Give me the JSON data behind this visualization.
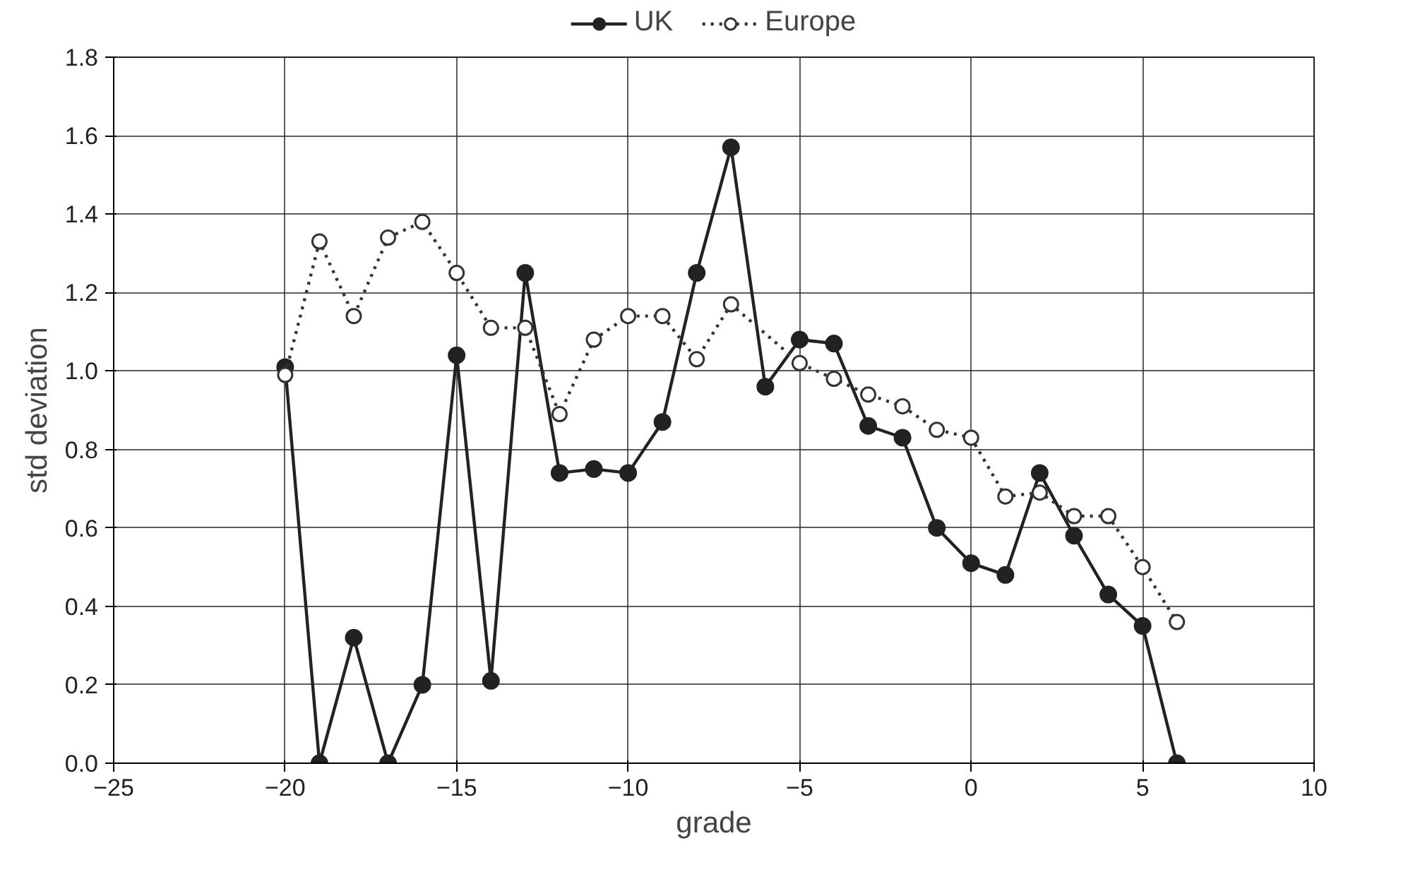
{
  "chart_data": {
    "type": "line",
    "xlabel": "grade",
    "ylabel": "std deviation",
    "x": [
      -20,
      -19,
      -18,
      -17,
      -16,
      -15,
      -14,
      -13,
      -12,
      -11,
      -10,
      -9,
      -8,
      -7,
      -6,
      -5,
      -4,
      -3,
      -2,
      -1,
      0,
      1,
      2,
      3,
      4,
      5,
      6
    ],
    "series": [
      {
        "name": "UK",
        "color": "#222222",
        "marker": "circle",
        "line_style": "solid",
        "values": [
          1.01,
          0,
          0.32,
          0,
          0.2,
          1.04,
          0.21,
          1.25,
          0.74,
          0.75,
          0.74,
          0.87,
          1.25,
          1.57,
          0.96,
          1.08,
          1.07,
          0.86,
          0.83,
          0.6,
          0.51,
          0.48,
          0.74,
          0.58,
          0.43,
          0.35,
          0
        ]
      },
      {
        "name": "Europe",
        "color": "#333333",
        "marker": "circle_open",
        "line_style": "dotted",
        "values": [
          0.99,
          1.33,
          1.14,
          1.34,
          1.38,
          1.25,
          1.11,
          1.11,
          0.89,
          1.08,
          1.14,
          1.14,
          1.03,
          1.17,
          null,
          1.02,
          0.98,
          0.94,
          0.91,
          0.85,
          0.83,
          0.68,
          0.69,
          0.63,
          0.63,
          0.5,
          0.36
        ]
      }
    ],
    "xlim": [
      -25,
      10
    ],
    "xticks": [
      -25,
      -20,
      -15,
      -10,
      -5,
      0,
      5,
      10
    ],
    "ylim": [
      0,
      1.8
    ],
    "yticks": [
      {
        "value": 0,
        "label": "0.0"
      },
      0.2,
      0.4,
      0.6,
      0.8,
      {
        "value": 1,
        "label": "1.0"
      },
      1.2,
      1.4,
      1.6,
      1.8
    ],
    "grid": true,
    "legend": "top"
  }
}
